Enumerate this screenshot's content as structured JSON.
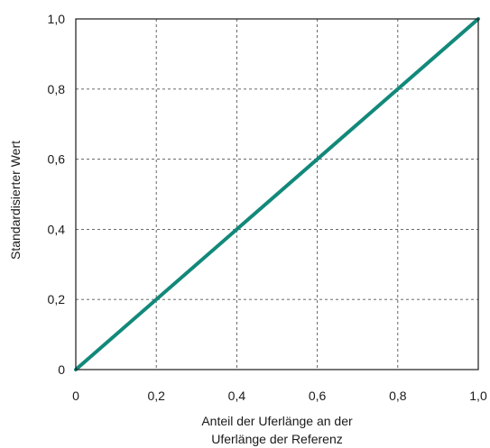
{
  "chart_data": {
    "type": "line",
    "title": "",
    "xlabel": [
      "Anteil der Uferlänge an der",
      "Uferlänge der Referenz"
    ],
    "ylabel": "Standardisierter Wert",
    "xlim": [
      0,
      1
    ],
    "ylim": [
      0,
      1
    ],
    "x_ticks": [
      0,
      0.2,
      0.4,
      0.6,
      0.8,
      1.0
    ],
    "x_tick_labels": [
      "0",
      "0,2",
      "0,4",
      "0,6",
      "0,8",
      "1,0"
    ],
    "y_ticks": [
      0,
      0.2,
      0.4,
      0.6,
      0.8,
      1.0
    ],
    "y_tick_labels": [
      "0",
      "0,2",
      "0,4",
      "0,6",
      "0,8",
      "1,0"
    ],
    "grid": true,
    "grid_style": "dashed",
    "legend": "none",
    "series": [
      {
        "x": [
          0,
          1.0
        ],
        "y": [
          0,
          1.0
        ],
        "color": "#12897a"
      }
    ]
  }
}
